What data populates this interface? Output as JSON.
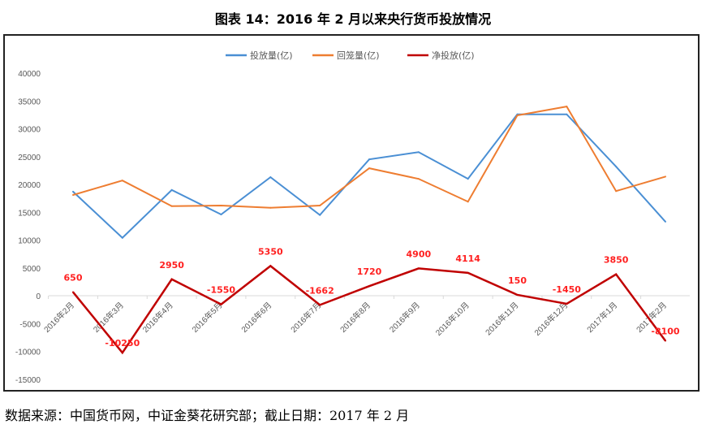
{
  "title": "图表 14：2016 年 2 月以来央行货币投放情况",
  "source": "数据来源：中国货币网，中证金葵花研究部；截止日期：2017 年 2 月",
  "chart_data": {
    "type": "line",
    "title": "图表 14：2016 年 2 月以来央行货币投放情况",
    "xlabel": "",
    "ylabel": "",
    "ylim": [
      -15000,
      40000
    ],
    "yticks": [
      40000,
      35000,
      30000,
      25000,
      20000,
      15000,
      10000,
      5000,
      0,
      -5000,
      -10000,
      -15000
    ],
    "grid": false,
    "legend": "top",
    "categories": [
      "2016年2月",
      "2016年3月",
      "2016年4月",
      "2016年5月",
      "2016年6月",
      "2016年7月",
      "2016年8月",
      "2016年9月",
      "2016年10月",
      "2016年11月",
      "2016年12月",
      "2017年1月",
      "2017年2月"
    ],
    "series": [
      {
        "name": "投放量(亿)",
        "color": "#4a8fd4",
        "values": [
          18700,
          10400,
          19000,
          14600,
          21300,
          14500,
          24500,
          25800,
          21000,
          32600,
          32600,
          23200,
          13300
        ]
      },
      {
        "name": "回笼量(亿)",
        "color": "#ee7d31",
        "values": [
          18100,
          20700,
          16100,
          16200,
          15800,
          16200,
          22900,
          21000,
          16900,
          32400,
          34000,
          18800,
          21400
        ]
      },
      {
        "name": "净投放(亿)",
        "color": "#c00000",
        "label_color": "#ff2020",
        "values": [
          650,
          -10250,
          2950,
          -1550,
          5350,
          -1662,
          1720,
          4900,
          4114,
          150,
          -1450,
          3850,
          -8100
        ],
        "labels": [
          "650",
          "-10250",
          "2950",
          "-1550",
          "5350",
          "-1662",
          "1720",
          "4900",
          "4114",
          "150",
          "-1450",
          "3850",
          "-8100"
        ]
      }
    ]
  }
}
